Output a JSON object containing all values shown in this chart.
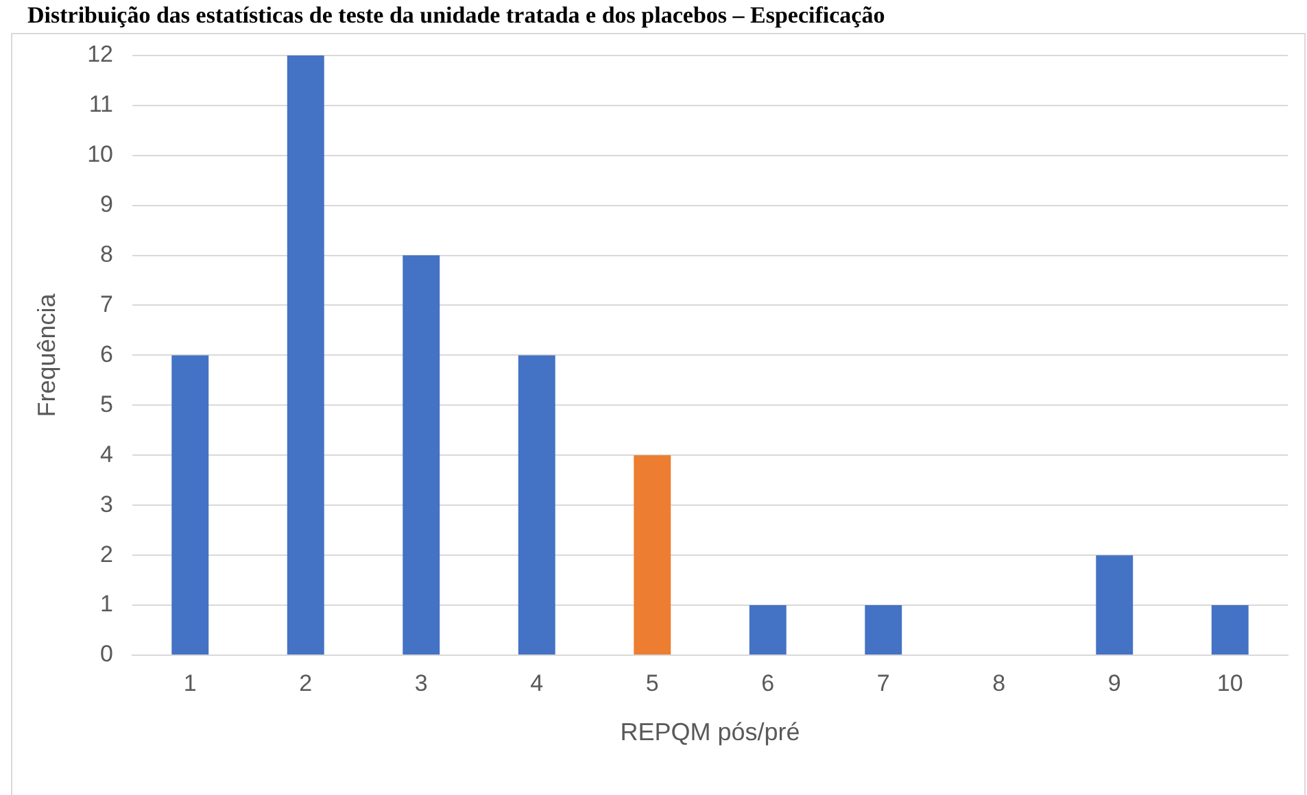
{
  "chart_data": {
    "type": "bar",
    "title": "Distribuição das estatísticas de teste da unidade tratada e dos placebos – Especificação",
    "categories": [
      "1",
      "2",
      "3",
      "4",
      "5",
      "6",
      "7",
      "8",
      "9",
      "10"
    ],
    "values": [
      6,
      12,
      8,
      6,
      4,
      1,
      1,
      0,
      2,
      1
    ],
    "colors": [
      "#4472c4",
      "#4472c4",
      "#4472c4",
      "#4472c4",
      "#ed7d31",
      "#4472c4",
      "#4472c4",
      "#4472c4",
      "#4472c4",
      "#4472c4"
    ],
    "xlabel": "REPQM pós/pré",
    "ylabel": "Frequência",
    "ylim": [
      0,
      12
    ],
    "yticks": [
      0,
      1,
      2,
      3,
      4,
      5,
      6,
      7,
      8,
      9,
      10,
      11,
      12
    ],
    "grid": "y",
    "legend": false
  }
}
